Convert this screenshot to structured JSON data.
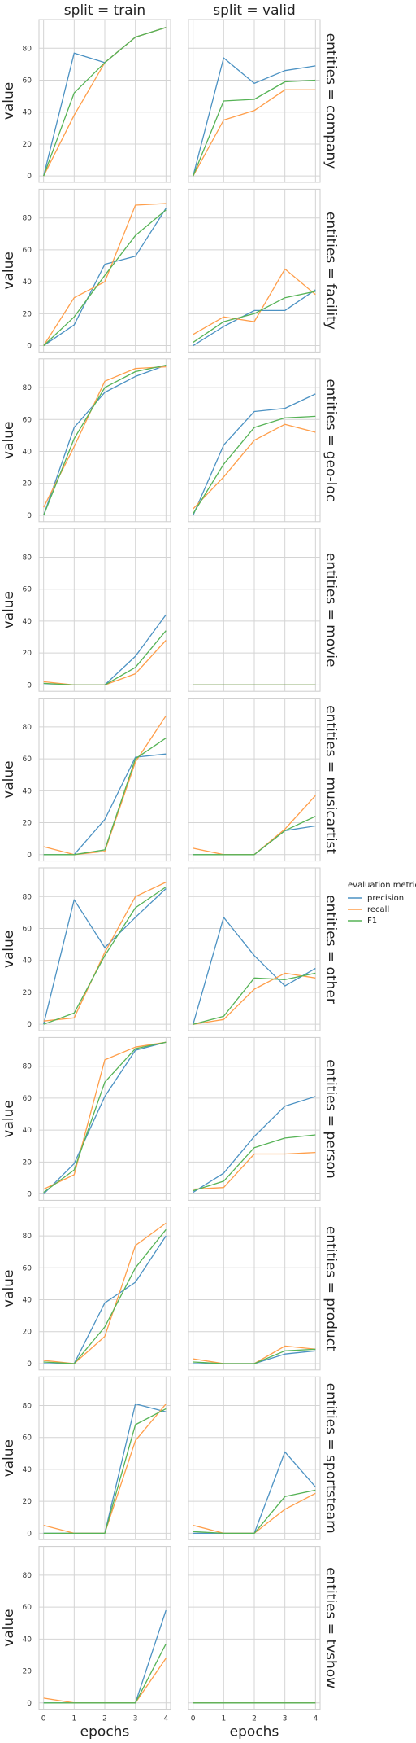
{
  "chart_data": {
    "type": "line",
    "facet_columns": [
      "split = train",
      "split = valid"
    ],
    "facet_rows": [
      "entities = company",
      "entities = facility",
      "entities = geo-loc",
      "entities = movie",
      "entities = musicartist",
      "entities = other",
      "entities = person",
      "entities = product",
      "entities = sportsteam",
      "entities = tvshow"
    ],
    "x": [
      0,
      1,
      2,
      3,
      4
    ],
    "x_ticks": [
      "0",
      "1",
      "2",
      "3",
      "4"
    ],
    "y_ticks": [
      "0",
      "20",
      "40",
      "60",
      "80"
    ],
    "ylim": [
      -4,
      98
    ],
    "xlim": [
      -0.15,
      4.15
    ],
    "xlabel": "epochs",
    "ylabel": "value",
    "grid": true,
    "legend": {
      "title": "evaluation metric",
      "placement": "right",
      "entries": [
        {
          "name": "precision",
          "color": "#4c92c3"
        },
        {
          "name": "recall",
          "color": "#ff9e4a"
        },
        {
          "name": "F1",
          "color": "#56b356"
        }
      ]
    },
    "panels": [
      {
        "row": 0,
        "col": 0,
        "series": {
          "precision": [
            0,
            77,
            71,
            87,
            93
          ],
          "recall": [
            0,
            38,
            71,
            87,
            93
          ],
          "F1": [
            0,
            52,
            71,
            87,
            93
          ]
        }
      },
      {
        "row": 0,
        "col": 1,
        "series": {
          "precision": [
            0,
            74,
            58,
            66,
            69
          ],
          "recall": [
            0,
            35,
            41,
            54,
            54
          ],
          "F1": [
            0,
            47,
            48,
            59,
            60
          ]
        }
      },
      {
        "row": 1,
        "col": 0,
        "series": {
          "precision": [
            0,
            13,
            51,
            56,
            86
          ],
          "recall": [
            0,
            30,
            40,
            88,
            89
          ],
          "F1": [
            0,
            18,
            44,
            69,
            85
          ]
        }
      },
      {
        "row": 1,
        "col": 1,
        "series": {
          "precision": [
            0,
            12,
            22,
            22,
            35
          ],
          "recall": [
            7,
            18,
            15,
            48,
            32
          ],
          "F1": [
            2,
            15,
            20,
            30,
            34
          ]
        }
      },
      {
        "row": 2,
        "col": 0,
        "series": {
          "precision": [
            0,
            55,
            77,
            87,
            94
          ],
          "recall": [
            5,
            43,
            84,
            92,
            93
          ],
          "F1": [
            0,
            48,
            80,
            90,
            94
          ]
        }
      },
      {
        "row": 2,
        "col": 1,
        "series": {
          "precision": [
            0,
            44,
            65,
            67,
            76
          ],
          "recall": [
            4,
            24,
            47,
            57,
            52
          ],
          "F1": [
            1,
            32,
            55,
            61,
            62
          ]
        }
      },
      {
        "row": 3,
        "col": 0,
        "series": {
          "precision": [
            0,
            0,
            0,
            18,
            44
          ],
          "recall": [
            2,
            0,
            0,
            7,
            28
          ],
          "F1": [
            1,
            0,
            0,
            11,
            34
          ]
        }
      },
      {
        "row": 3,
        "col": 1,
        "series": {
          "precision": [
            0,
            0,
            0,
            0,
            0
          ],
          "recall": [
            0,
            0,
            0,
            0,
            0
          ],
          "F1": [
            0,
            0,
            0,
            0,
            0
          ]
        }
      },
      {
        "row": 4,
        "col": 0,
        "series": {
          "precision": [
            0,
            0,
            22,
            61,
            63
          ],
          "recall": [
            5,
            0,
            2,
            58,
            87
          ],
          "F1": [
            0,
            0,
            3,
            60,
            73
          ]
        }
      },
      {
        "row": 4,
        "col": 1,
        "series": {
          "precision": [
            0,
            0,
            0,
            15,
            18
          ],
          "recall": [
            4,
            0,
            0,
            16,
            37
          ],
          "F1": [
            0,
            0,
            0,
            15,
            24
          ]
        }
      },
      {
        "row": 5,
        "col": 0,
        "series": {
          "precision": [
            0,
            78,
            48,
            67,
            85
          ],
          "recall": [
            2,
            4,
            45,
            80,
            89
          ],
          "F1": [
            0,
            7,
            43,
            73,
            86
          ]
        }
      },
      {
        "row": 5,
        "col": 1,
        "series": {
          "precision": [
            0,
            67,
            43,
            24,
            35
          ],
          "recall": [
            0,
            3,
            22,
            32,
            29
          ],
          "F1": [
            0,
            5,
            29,
            28,
            32
          ]
        }
      },
      {
        "row": 6,
        "col": 0,
        "series": {
          "precision": [
            0,
            19,
            61,
            90,
            95
          ],
          "recall": [
            3,
            12,
            84,
            92,
            95
          ],
          "F1": [
            1,
            15,
            70,
            91,
            95
          ]
        }
      },
      {
        "row": 6,
        "col": 1,
        "series": {
          "precision": [
            1,
            13,
            36,
            55,
            61
          ],
          "recall": [
            3,
            4,
            25,
            25,
            26
          ],
          "F1": [
            2,
            8,
            29,
            35,
            37
          ]
        }
      },
      {
        "row": 7,
        "col": 0,
        "series": {
          "precision": [
            0,
            0,
            38,
            51,
            80
          ],
          "recall": [
            2,
            0,
            17,
            74,
            88
          ],
          "F1": [
            1,
            0,
            23,
            60,
            84
          ]
        }
      },
      {
        "row": 7,
        "col": 1,
        "series": {
          "precision": [
            0,
            0,
            0,
            6,
            8
          ],
          "recall": [
            3,
            0,
            0,
            11,
            9
          ],
          "F1": [
            1,
            0,
            0,
            8,
            9
          ]
        }
      },
      {
        "row": 8,
        "col": 0,
        "series": {
          "precision": [
            0,
            0,
            0,
            81,
            76
          ],
          "recall": [
            5,
            0,
            0,
            58,
            81
          ],
          "F1": [
            0,
            0,
            0,
            68,
            78
          ]
        }
      },
      {
        "row": 8,
        "col": 1,
        "series": {
          "precision": [
            0,
            0,
            0,
            51,
            29
          ],
          "recall": [
            5,
            0,
            0,
            15,
            25
          ],
          "F1": [
            1,
            0,
            0,
            23,
            27
          ]
        }
      },
      {
        "row": 9,
        "col": 0,
        "series": {
          "precision": [
            0,
            0,
            0,
            0,
            58
          ],
          "recall": [
            3,
            0,
            0,
            0,
            28
          ],
          "F1": [
            0,
            0,
            0,
            0,
            37
          ]
        }
      },
      {
        "row": 9,
        "col": 1,
        "series": {
          "precision": [
            0,
            0,
            0,
            0,
            0
          ],
          "recall": [
            0,
            0,
            0,
            0,
            0
          ],
          "F1": [
            0,
            0,
            0,
            0,
            0
          ]
        }
      }
    ]
  }
}
